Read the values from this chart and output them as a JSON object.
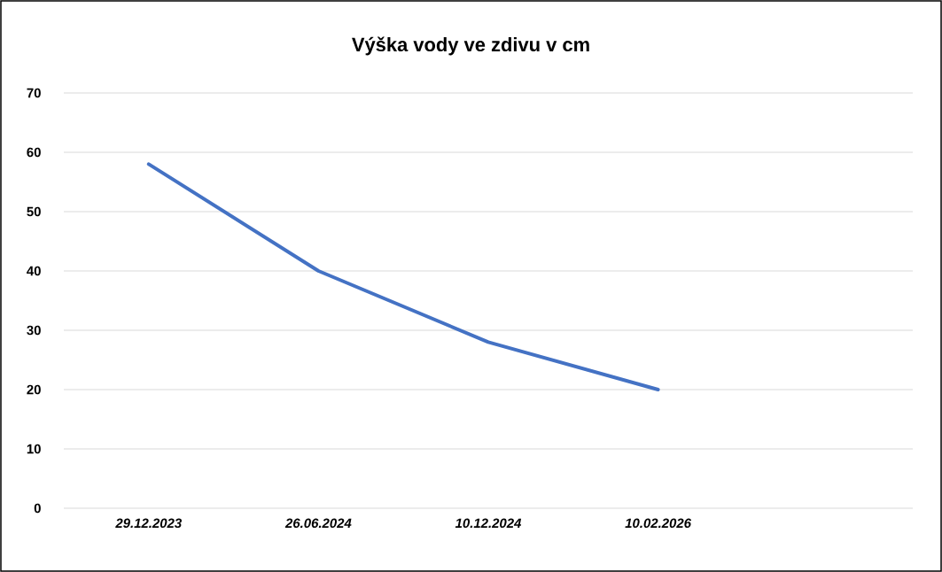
{
  "chart_data": {
    "type": "line",
    "title": "Výška vody ve zdivu v cm",
    "categories": [
      "29.12.2023",
      "26.06.2024",
      "10.12.2024",
      "10.02.2026",
      null
    ],
    "series": [
      {
        "color": "#4472c4",
        "values": [
          58,
          40,
          28,
          20,
          null
        ]
      }
    ],
    "ylim": [
      0,
      70
    ],
    "yticks": [
      0,
      10,
      20,
      30,
      40,
      50,
      60,
      70
    ],
    "grid": "y",
    "marker": "none",
    "line_style": "solid"
  }
}
